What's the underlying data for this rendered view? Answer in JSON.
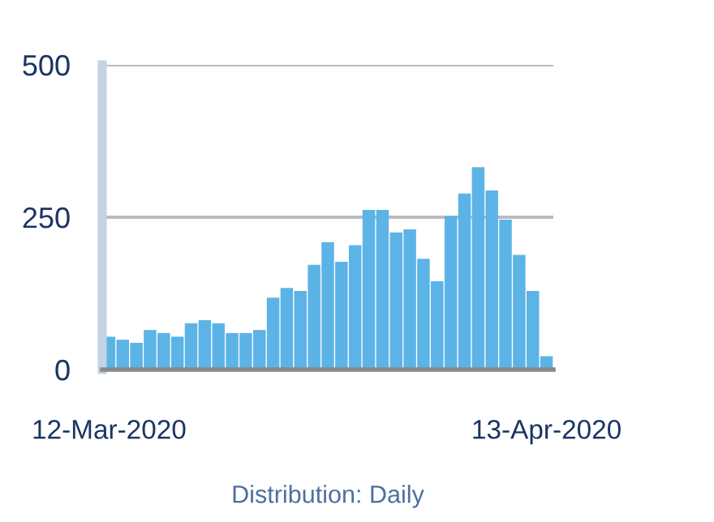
{
  "chart_data": {
    "type": "bar",
    "xlabel": "Distribution: Daily",
    "categories": [
      "12-Mar-2020",
      null,
      null,
      null,
      null,
      null,
      null,
      null,
      null,
      null,
      null,
      null,
      null,
      null,
      null,
      null,
      null,
      null,
      null,
      null,
      null,
      null,
      null,
      null,
      null,
      null,
      null,
      null,
      null,
      null,
      null,
      null,
      "13-Apr-2020"
    ],
    "values": [
      54,
      49,
      44,
      65,
      60,
      54,
      76,
      81,
      76,
      60,
      60,
      65,
      118,
      134,
      129,
      172,
      209,
      177,
      204,
      262,
      262,
      225,
      230,
      182,
      145,
      252,
      289,
      332,
      294,
      246,
      188,
      129,
      22
    ],
    "color": "#5cb3e6",
    "ylim": [
      0,
      500
    ],
    "yticks": [
      0,
      250,
      500
    ],
    "grid": "y",
    "legend": false
  }
}
